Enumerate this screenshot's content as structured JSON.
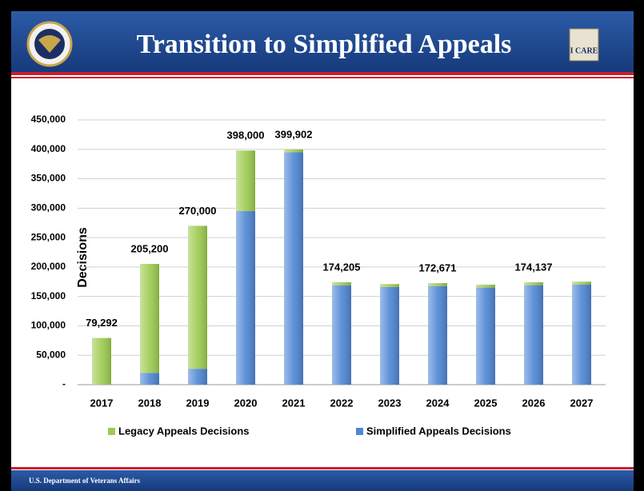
{
  "header": {
    "title": "Transition to Simplified Appeals",
    "badge": "I CARE"
  },
  "footer": {
    "text": "U.S. Department of Veterans Affairs"
  },
  "chart_data": {
    "type": "bar",
    "stacked": true,
    "y_label": "Decisions",
    "categories": [
      "2017",
      "2018",
      "2019",
      "2020",
      "2021",
      "2022",
      "2023",
      "2024",
      "2025",
      "2026",
      "2027"
    ],
    "series": [
      {
        "name": "Simplified Appeals Decisions",
        "color": "#4f86d4",
        "values": [
          0,
          20000,
          27000,
          295000,
          395000,
          169000,
          166000,
          167671,
          165000,
          169137,
          170000
        ]
      },
      {
        "name": "Legacy Appeals Decisions",
        "color": "#9dcb4f",
        "values": [
          79292,
          185200,
          243000,
          103000,
          4902,
          5205,
          5000,
          5000,
          5000,
          5000,
          5000
        ]
      }
    ],
    "totals": [
      79292,
      205200,
      270000,
      398000,
      399902,
      174205,
      null,
      172671,
      null,
      174137,
      null
    ],
    "total_labels": [
      "79,292",
      "205,200",
      "270,000",
      "398,000",
      "399,902",
      "174,205",
      null,
      "172,671",
      null,
      "174,137",
      null
    ],
    "ylim": [
      0,
      450000
    ],
    "yticks": [
      {
        "value": 0,
        "label": "-"
      },
      {
        "value": 50000,
        "label": "50,000"
      },
      {
        "value": 100000,
        "label": "100,000"
      },
      {
        "value": 150000,
        "label": "150,000"
      },
      {
        "value": 200000,
        "label": "200,000"
      },
      {
        "value": 250000,
        "label": "250,000"
      },
      {
        "value": 300000,
        "label": "300,000"
      },
      {
        "value": 350000,
        "label": "350,000"
      },
      {
        "value": 400000,
        "label": "400,000"
      },
      {
        "value": 450000,
        "label": "450,000"
      }
    ],
    "grid": true,
    "legend": "bottom"
  }
}
